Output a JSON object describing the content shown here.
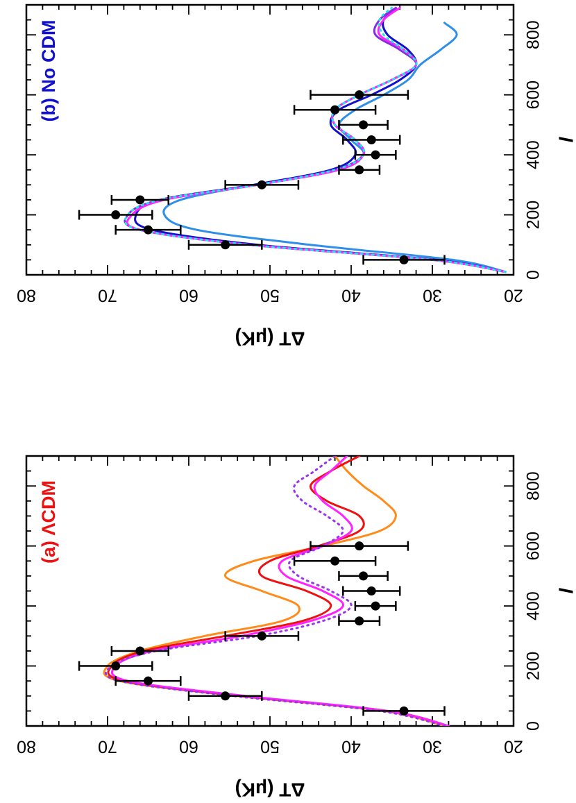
{
  "colors": {
    "lcdm_orange": "#ff8c1a",
    "lcdm_red": "#ee1111",
    "lcdm_magenta": "#ff22ff",
    "lcdm_purple_dotted": "#9933ee",
    "nocdm_lightblue": "#2e8ee8",
    "nocdm_blue": "#1111cc",
    "nocdm_purple": "#8a2be2",
    "nocdm_magenta": "#ff22ff",
    "nocdm_cyan_dotted": "#22e5e5",
    "data_points": "#000000",
    "label_a": "#ee1111",
    "label_b": "#1111cc"
  },
  "chart_data": [
    {
      "type": "line",
      "orientation": "rotated 90 degrees",
      "panel_label_a": "(a)",
      "panel_label_b": "ΛCDM",
      "xlabel": "l",
      "ylabel": "ΔT (μK)",
      "xlim": [
        0,
        900
      ],
      "ylim": [
        20,
        80
      ],
      "x_ticks": [
        "0",
        "200",
        "400",
        "600",
        "800"
      ],
      "y_ticks": [
        "20",
        "30",
        "40",
        "50",
        "60",
        "70",
        "80"
      ],
      "data_points": [
        {
          "l": 50,
          "dT": 33.5,
          "err": 5.0
        },
        {
          "l": 100,
          "dT": 55.5,
          "err": 4.5
        },
        {
          "l": 150,
          "dT": 65.0,
          "err": 4.0
        },
        {
          "l": 200,
          "dT": 69.0,
          "err": 4.5
        },
        {
          "l": 250,
          "dT": 66.0,
          "err": 3.5
        },
        {
          "l": 300,
          "dT": 51.0,
          "err": 4.5
        },
        {
          "l": 350,
          "dT": 39.0,
          "err": 2.5
        },
        {
          "l": 400,
          "dT": 37.0,
          "err": 2.5
        },
        {
          "l": 450,
          "dT": 37.5,
          "err": 3.5
        },
        {
          "l": 500,
          "dT": 38.5,
          "err": 3.0
        },
        {
          "l": 550,
          "dT": 42.0,
          "err": 5.0
        },
        {
          "l": 600,
          "dT": 39.0,
          "err": 6.0
        }
      ],
      "series": [
        {
          "color": "orange",
          "style": "solid",
          "x": [
            0,
            50,
            100,
            150,
            200,
            250,
            300,
            350,
            400,
            450,
            500,
            550,
            600,
            650,
            700,
            750,
            800,
            850,
            900
          ],
          "values": [
            28.5,
            36,
            54,
            68.5,
            70,
            66,
            58,
            48.5,
            46.5,
            51,
            55.5,
            52,
            43.5,
            36.5,
            34.5,
            36,
            38.5,
            40.5,
            42
          ]
        },
        {
          "color": "red",
          "style": "solid",
          "x": [
            0,
            50,
            100,
            150,
            200,
            250,
            300,
            350,
            400,
            450,
            500,
            550,
            600,
            650,
            700,
            750,
            800,
            850,
            900
          ],
          "values": [
            28,
            35.5,
            53.5,
            68,
            69.5,
            65.5,
            55.5,
            46,
            42.5,
            45.5,
            51,
            50,
            44,
            39,
            39,
            43,
            45,
            42.5,
            39
          ]
        },
        {
          "color": "magenta",
          "style": "solid",
          "x": [
            0,
            50,
            100,
            150,
            200,
            250,
            300,
            350,
            400,
            450,
            500,
            550,
            600,
            650,
            700,
            750,
            800,
            850,
            900
          ],
          "values": [
            28,
            35.5,
            53,
            67.5,
            69,
            64.5,
            53.5,
            45,
            41,
            43.5,
            48,
            48.5,
            43.5,
            40,
            41,
            43.5,
            44.5,
            42.5,
            40.5
          ]
        },
        {
          "color": "purple",
          "style": "dotted",
          "x": [
            0,
            50,
            100,
            150,
            200,
            250,
            300,
            350,
            400,
            450,
            500,
            550,
            600,
            650,
            700,
            750,
            800,
            850,
            900
          ],
          "values": [
            28.5,
            36.5,
            54.5,
            68.5,
            69.5,
            64,
            51.5,
            43.5,
            40,
            42.5,
            46.5,
            47.5,
            43.5,
            41,
            43,
            46,
            47,
            44.5,
            42
          ]
        }
      ]
    },
    {
      "type": "line",
      "orientation": "rotated 90 degrees",
      "panel_label_a": "(b)",
      "panel_label_b": "No CDM",
      "xlabel": "l",
      "ylabel": "ΔT (μK)",
      "xlim": [
        0,
        900
      ],
      "ylim": [
        20,
        80
      ],
      "x_ticks": [
        "0",
        "200",
        "400",
        "600",
        "800"
      ],
      "y_ticks": [
        "20",
        "30",
        "40",
        "50",
        "60",
        "70",
        "80"
      ],
      "data_points": [
        {
          "l": 50,
          "dT": 33.5,
          "err": 5.0
        },
        {
          "l": 100,
          "dT": 55.5,
          "err": 4.5
        },
        {
          "l": 150,
          "dT": 65.0,
          "err": 4.0
        },
        {
          "l": 200,
          "dT": 69.0,
          "err": 4.5
        },
        {
          "l": 250,
          "dT": 66.0,
          "err": 3.5
        },
        {
          "l": 300,
          "dT": 51.0,
          "err": 4.5
        },
        {
          "l": 350,
          "dT": 39.0,
          "err": 2.5
        },
        {
          "l": 400,
          "dT": 37.0,
          "err": 2.5
        },
        {
          "l": 450,
          "dT": 37.5,
          "err": 3.5
        },
        {
          "l": 500,
          "dT": 38.5,
          "err": 3.0
        },
        {
          "l": 550,
          "dT": 42.0,
          "err": 5.0
        },
        {
          "l": 600,
          "dT": 39.0,
          "err": 6.0
        }
      ],
      "series": [
        {
          "color": "lightblue",
          "style": "solid",
          "x": [
            10,
            50,
            100,
            150,
            200,
            250,
            300,
            350,
            400,
            450,
            500,
            550,
            600,
            650,
            700,
            750,
            800,
            840
          ],
          "values": [
            21,
            27.5,
            45,
            59,
            63,
            61,
            52,
            42,
            38.5,
            40,
            41.5,
            39.5,
            36,
            33,
            31.5,
            29,
            27,
            28.5
          ]
        },
        {
          "color": "blue",
          "style": "solid",
          "x": [
            10,
            50,
            100,
            150,
            200,
            250,
            300,
            350,
            400,
            450,
            500,
            550,
            600,
            650,
            700,
            750,
            800,
            850,
            890
          ],
          "values": [
            21,
            29.5,
            51.5,
            64.5,
            66.5,
            63.5,
            52,
            42.5,
            39.5,
            40.5,
            42.5,
            41.5,
            37.5,
            34,
            32,
            33,
            35.5,
            36,
            34
          ]
        },
        {
          "color": "purple",
          "style": "solid",
          "x": [
            10,
            50,
            100,
            150,
            200,
            250,
            300,
            350,
            400,
            450,
            500,
            550,
            600,
            650,
            700,
            750,
            800,
            850,
            890
          ],
          "values": [
            21,
            30,
            52.5,
            66,
            67.5,
            63.5,
            51.5,
            42,
            38.5,
            39.5,
            42,
            42,
            39,
            35,
            32,
            34,
            37,
            36.5,
            34.5
          ]
        },
        {
          "color": "magenta",
          "style": "solid",
          "x": [
            10,
            50,
            100,
            150,
            200,
            250,
            300,
            350,
            400,
            450,
            500,
            550,
            600,
            650,
            700,
            750,
            800,
            850,
            890
          ],
          "values": [
            21,
            30,
            52.5,
            66,
            67,
            63,
            51.5,
            41.5,
            38.5,
            39.5,
            42,
            42,
            39,
            35,
            32,
            33.5,
            36.5,
            36,
            34
          ]
        },
        {
          "color": "cyan",
          "style": "dotted",
          "x": [
            10,
            50,
            100,
            150,
            200,
            250,
            300,
            350,
            400,
            450,
            500,
            550,
            600,
            650,
            700,
            750,
            800,
            850,
            890
          ],
          "values": [
            21,
            30,
            52.5,
            66,
            67.5,
            63.5,
            51.5,
            42,
            38.5,
            39.5,
            42,
            42,
            39,
            35,
            32,
            33.5,
            36,
            36.5,
            35
          ]
        }
      ]
    }
  ]
}
